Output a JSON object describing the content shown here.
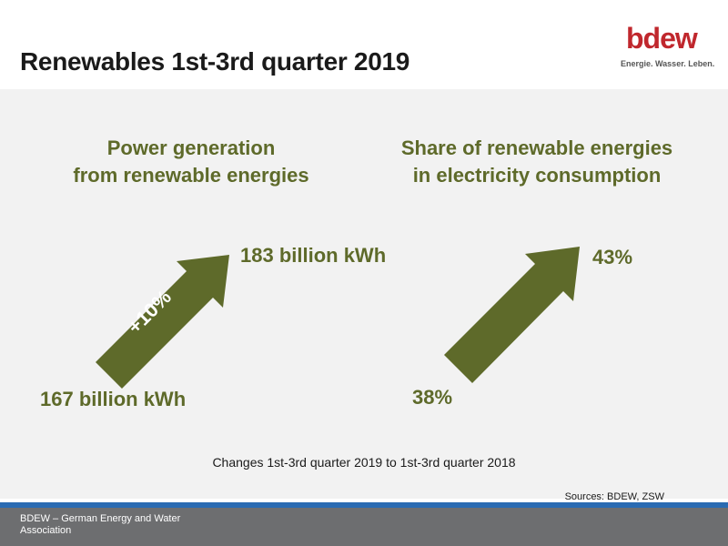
{
  "title": "Renewables 1st-3rd quarter 2019",
  "logo": {
    "word": "bdew",
    "tagline": "Energie. Wasser. Leben."
  },
  "left": {
    "heading_line1": "Power generation",
    "heading_line2": "from renewable energies",
    "start_value": "167 billion kWh",
    "end_value": "183 billion kWh",
    "arrow_label": "+10%"
  },
  "right": {
    "heading_line1": "Share of renewable energies",
    "heading_line2": "in electricity consumption",
    "start_value": "38%",
    "end_value": "43%"
  },
  "changes_note": "Changes 1st-3rd quarter 2019 to 1st-3rd quarter 2018",
  "sources": "Sources: BDEW, ZSW",
  "footer": {
    "org": "BDEW – German Energy and Water Association"
  },
  "colors": {
    "arrow": "#5e6a2a",
    "brand_red": "#c0272d",
    "footer_bg": "#6d6e70",
    "footer_bar": "#2a6bb2"
  }
}
